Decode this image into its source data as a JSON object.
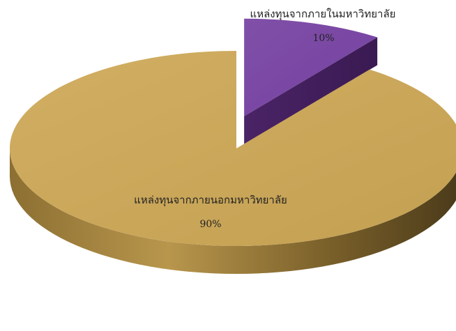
{
  "chart_data": {
    "type": "pie",
    "style": "3d-exploded",
    "title": "",
    "slices": [
      {
        "label": "แหล่งทุนจากภายนอกมหาวิทยาลัย",
        "value": 90,
        "value_label": "90%",
        "color": "#C9A75A"
      },
      {
        "label": "แหล่งทุนจากภายในมหาวิทยาลัย",
        "value": 10,
        "value_label": "10%",
        "color": "#7A45A0"
      }
    ],
    "legend": "none"
  }
}
